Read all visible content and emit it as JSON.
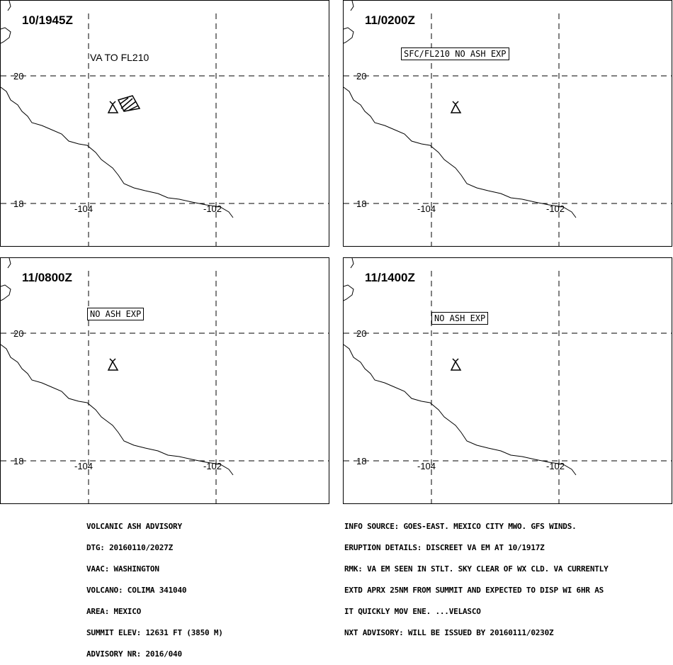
{
  "panels": [
    {
      "time": "10/1945Z",
      "ash_text": "VA TO FL210",
      "boxed": false,
      "has_polygon": true
    },
    {
      "time": "11/0200Z",
      "ash_text": "SFC/FL210 NO ASH EXP",
      "boxed": true,
      "has_polygon": false
    },
    {
      "time": "11/0800Z",
      "ash_text": "NO ASH EXP",
      "boxed": true,
      "has_polygon": false
    },
    {
      "time": "11/1400Z",
      "ash_text": "NO ASH EXP",
      "boxed": true,
      "has_polygon": false
    }
  ],
  "grid_labels": {
    "lat_north": "20",
    "lat_south": "18",
    "lon_west": "-104",
    "lon_east": "-102"
  },
  "advisory_left": [
    "VOLCANIC ASH ADVISORY",
    "DTG: 20160110/2027Z",
    "VAAC: WASHINGTON",
    "VOLCANO: COLIMA 341040",
    "AREA: MEXICO",
    "SUMMIT ELEV: 12631 FT (3850 M)",
    "ADVISORY NR: 2016/040"
  ],
  "advisory_right": [
    "INFO SOURCE: GOES-EAST. MEXICO CITY MWO. GFS WINDS.",
    "ERUPTION DETAILS: DISCREET VA EM AT 10/1917Z",
    "RMK: VA EM SEEN IN STLT. SKY CLEAR OF WX CLD. VA CURRENTLY",
    "EXTD APRX 25NM FROM SUMMIT AND EXPECTED TO DISP WI 6HR AS",
    "IT QUICKLY MOV ENE. ...VELASCO",
    "NXT ADVISORY: WILL BE ISSUED BY 20160111/0230Z"
  ]
}
